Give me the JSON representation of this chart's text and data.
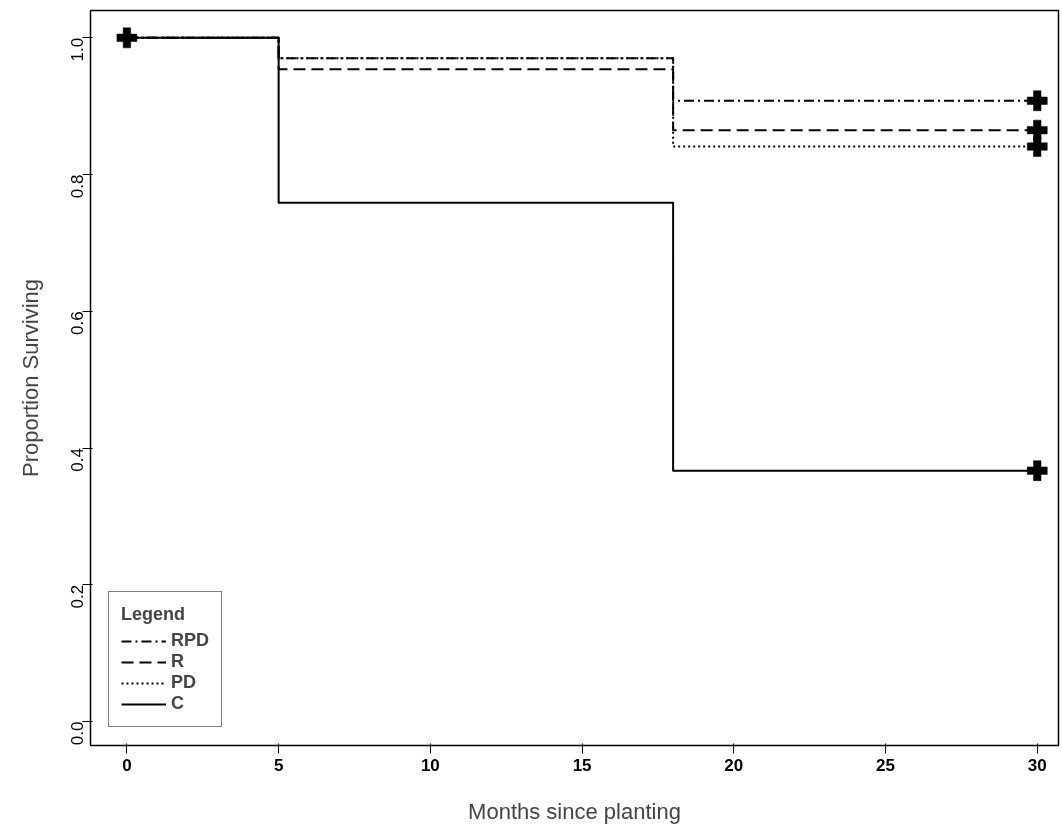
{
  "chart_data": {
    "type": "step",
    "xlabel": "Months since planting",
    "ylabel": "Proportion Surviving",
    "legend_title": "Legend",
    "legend": "bottom left",
    "grid": false,
    "xlim": [
      -1.2,
      30.7
    ],
    "ylim": [
      -0.035,
      1.04
    ],
    "xticks": [
      0,
      5,
      10,
      15,
      20,
      25,
      30
    ],
    "yticks": [
      {
        "value": 0,
        "label": "0.0"
      },
      {
        "value": 0.2,
        "label": "0.2"
      },
      {
        "value": 0.4,
        "label": "0.4"
      },
      {
        "value": 0.6,
        "label": "0.6"
      },
      {
        "value": 0.8,
        "label": "0.8"
      },
      {
        "value": 1,
        "label": "1.0"
      }
    ],
    "series": [
      {
        "name": "RPD",
        "color": "#000000",
        "line_style": "dashdot",
        "x": [
          0,
          5,
          18,
          30
        ],
        "values": [
          1,
          0.97,
          0.908,
          0.908
        ]
      },
      {
        "name": "R",
        "color": "#000000",
        "line_style": "dashed",
        "x": [
          0,
          5,
          18,
          30
        ],
        "values": [
          1,
          0.954,
          0.865,
          0.865
        ]
      },
      {
        "name": "PD",
        "color": "#000000",
        "line_style": "dotted",
        "x": [
          0,
          5,
          18,
          30
        ],
        "values": [
          1,
          0.97,
          0.841,
          0.841
        ]
      },
      {
        "name": "C",
        "color": "#000000",
        "line_style": "solid",
        "x": [
          0,
          5,
          18,
          30
        ],
        "values": [
          1,
          0.759,
          0.367,
          0.367
        ]
      },
      {
        "type": "scatter",
        "marker": "cross",
        "color": "#000000",
        "x": [
          0,
          30,
          30,
          30,
          30
        ],
        "values": [
          1,
          0.908,
          0.865,
          0.841,
          0.367
        ]
      }
    ]
  }
}
